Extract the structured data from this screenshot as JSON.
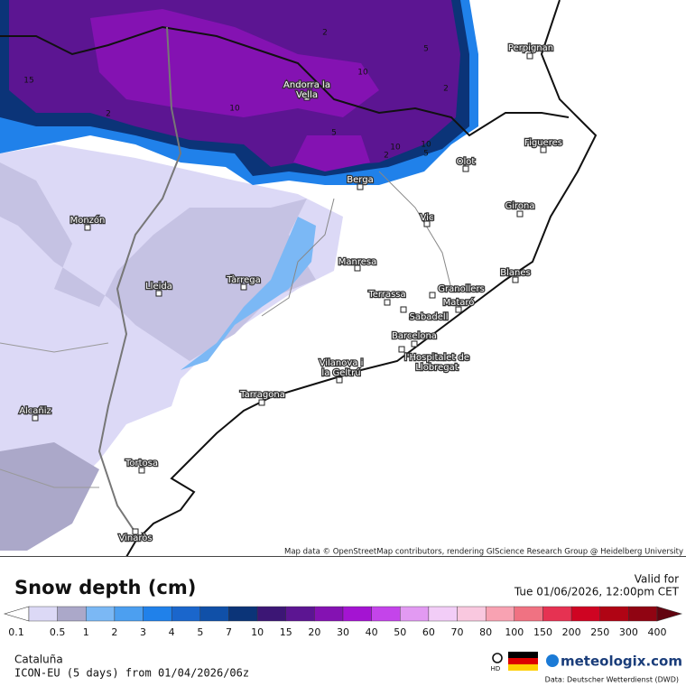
{
  "map": {
    "attribution": "Map data © OpenStreetMap contributors, rendering GIScience Research Group @ Heidelberg University",
    "cities": [
      {
        "label": "Perpignan"
      },
      {
        "label": "Andorra la Vella"
      },
      {
        "label": "Figueres"
      },
      {
        "label": "Olot"
      },
      {
        "label": "Berga"
      },
      {
        "label": "Girona"
      },
      {
        "label": "Vic"
      },
      {
        "label": "Monzón"
      },
      {
        "label": "Manresa"
      },
      {
        "label": "Blanes"
      },
      {
        "label": "Tàrrega"
      },
      {
        "label": "Lleida"
      },
      {
        "label": "Granollers"
      },
      {
        "label": "Terrassa"
      },
      {
        "label": "Mataró"
      },
      {
        "label": "Sabadell"
      },
      {
        "label": "Barcelona"
      },
      {
        "label": "l'Hospitalet de Llobregat"
      },
      {
        "label": "Vilanova i la Geltrú"
      },
      {
        "label": "Tarragona"
      },
      {
        "label": "Alcañiz"
      },
      {
        "label": "Tortosa"
      },
      {
        "label": "Vinaròs"
      }
    ],
    "contour_labels": [
      "2",
      "5",
      "10",
      "15",
      "2",
      "5",
      "10",
      "2",
      "10",
      "5",
      "2",
      "10"
    ]
  },
  "legend": {
    "title": "Snow depth (cm)",
    "valid_label": "Valid for",
    "valid_time": "Tue 01/06/2026, 12:00pm CET",
    "labels": [
      "0.1",
      "0.5",
      "1",
      "2",
      "3",
      "4",
      "5",
      "7",
      "10",
      "15",
      "20",
      "30",
      "40",
      "50",
      "60",
      "70",
      "80",
      "100",
      "150",
      "200",
      "250",
      "300",
      "400"
    ],
    "colors": [
      "#ffffff",
      "#dcd9f6",
      "#aba8c9",
      "#7bb8f5",
      "#4c9ff0",
      "#2081ea",
      "#1a66cc",
      "#1050a8",
      "#0b3478",
      "#3c1675",
      "#5c1592",
      "#8412b2",
      "#a414d2",
      "#c444ea",
      "#e29af2",
      "#f2cdf7",
      "#f9c8df",
      "#f8a2b2",
      "#f07282",
      "#e63252",
      "#cf0422",
      "#b00414",
      "#900412",
      "#620410"
    ]
  },
  "footer": {
    "region": "Cataluña",
    "model": "ICON-EU (5 days) from 01/04/2026/06z",
    "hd": "HD",
    "brand": "meteologix.com",
    "source": "Data: Deutscher Wetterdienst (DWD)"
  }
}
